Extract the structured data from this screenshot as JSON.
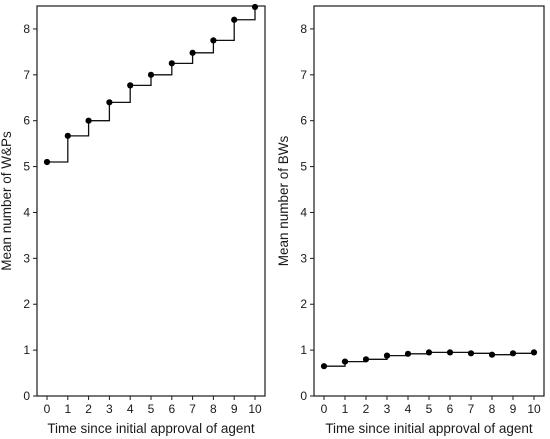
{
  "chart_data": [
    {
      "type": "line",
      "step": true,
      "xlabel": "Time since initial approval of agent",
      "ylabel": "Mean number of W&Ps",
      "xlim": [
        0,
        10
      ],
      "ylim": [
        0,
        8.5
      ],
      "x_ticks": [
        0,
        1,
        2,
        3,
        4,
        5,
        6,
        7,
        8,
        9,
        10
      ],
      "y_ticks": [
        0,
        1,
        2,
        3,
        4,
        5,
        6,
        7,
        8
      ],
      "grid": false,
      "series": [
        {
          "x": [
            0,
            1,
            2,
            3,
            4,
            5,
            6,
            7,
            8,
            9,
            10
          ],
          "values": [
            5.1,
            5.67,
            6.0,
            6.4,
            6.77,
            7.0,
            7.25,
            7.48,
            7.75,
            8.2,
            8.48
          ]
        }
      ]
    },
    {
      "type": "line",
      "step": true,
      "xlabel": "Time since initial approval of agent",
      "ylabel": "Mean number of BWs",
      "xlim": [
        0,
        10
      ],
      "ylim": [
        0,
        8.5
      ],
      "x_ticks": [
        0,
        1,
        2,
        3,
        4,
        5,
        6,
        7,
        8,
        9,
        10
      ],
      "y_ticks": [
        0,
        1,
        2,
        3,
        4,
        5,
        6,
        7,
        8
      ],
      "grid": false,
      "series": [
        {
          "x": [
            0,
            1,
            2,
            3,
            4,
            5,
            6,
            7,
            8,
            9,
            10
          ],
          "values": [
            0.65,
            0.75,
            0.8,
            0.88,
            0.92,
            0.95,
            0.95,
            0.93,
            0.9,
            0.93,
            0.95
          ]
        }
      ]
    }
  ]
}
